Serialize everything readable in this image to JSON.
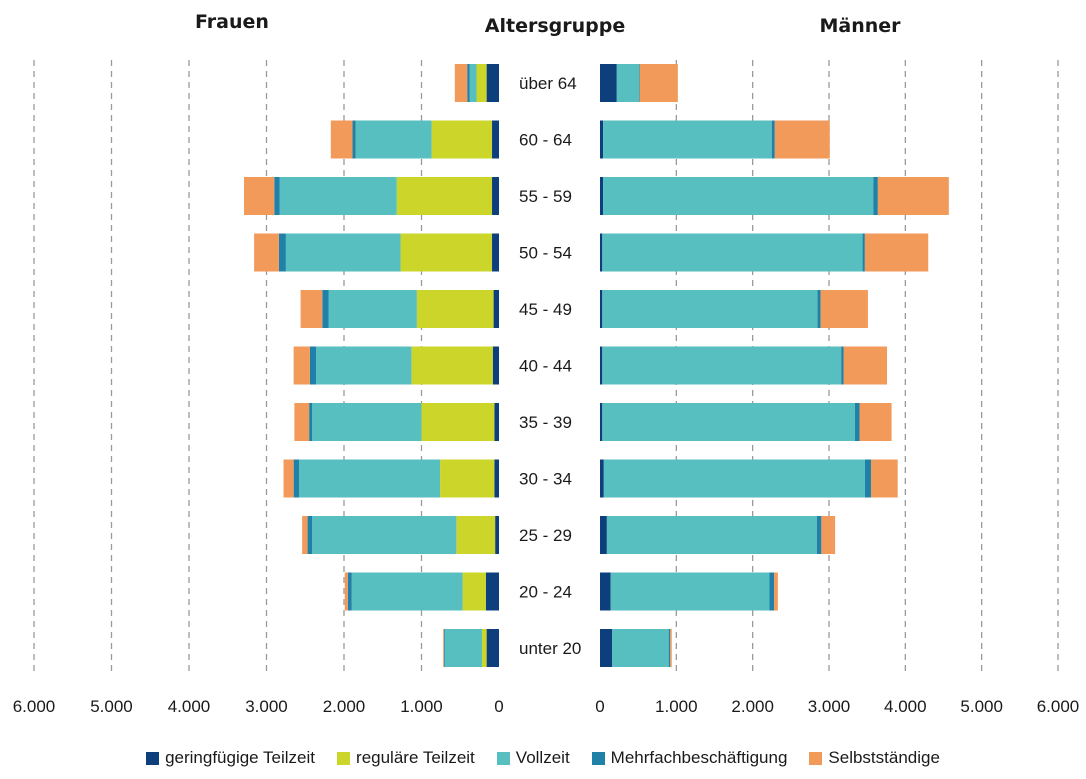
{
  "chart_data": {
    "type": "bar",
    "orientation": "horizontal-pyramid",
    "headers": {
      "left": "Frauen",
      "center": "Altersgruppe",
      "right": "Männer"
    },
    "categories": [
      "über 64",
      "60 - 64",
      "55 - 59",
      "50 - 54",
      "45 - 49",
      "40 - 44",
      "35 - 39",
      "30 - 34",
      "25 - 29",
      "20 - 24",
      "unter 20"
    ],
    "xlim": [
      0,
      6000
    ],
    "ticks": [
      {
        "value": 6000,
        "label": "6.000"
      },
      {
        "value": 5000,
        "label": "5.000"
      },
      {
        "value": 4000,
        "label": "4.000"
      },
      {
        "value": 3000,
        "label": "3.000"
      },
      {
        "value": 2000,
        "label": "2.000"
      },
      {
        "value": 1000,
        "label": "1.000"
      },
      {
        "value": 0,
        "label": "0"
      }
    ],
    "grid": true,
    "legend_position": "bottom",
    "series": [
      {
        "name": "geringfügige Teilzeit",
        "color": "#0d3f7c",
        "frauen": [
          160,
          90,
          90,
          90,
          70,
          80,
          60,
          60,
          50,
          170,
          160
        ],
        "maenner": [
          220,
          40,
          40,
          30,
          30,
          30,
          30,
          50,
          90,
          140,
          160
        ]
      },
      {
        "name": "reguläre Teilzeit",
        "color": "#ccd52a",
        "frauen": [
          130,
          780,
          1230,
          1180,
          990,
          1050,
          940,
          700,
          500,
          300,
          60
        ]
      },
      {
        "name": "Vollzeit",
        "color": "#57bfbf",
        "frauen": [
          90,
          980,
          1510,
          1480,
          1140,
          1230,
          1410,
          1820,
          1860,
          1430,
          480
        ],
        "maenner": [
          290,
          2210,
          3540,
          3410,
          2820,
          3130,
          3310,
          3420,
          2750,
          2080,
          740
        ]
      },
      {
        "name": "Mehrfachbeschäftigung",
        "color": "#1f80a8",
        "frauen": [
          30,
          40,
          70,
          90,
          80,
          80,
          40,
          70,
          60,
          50,
          10
        ],
        "maenner": [
          10,
          40,
          60,
          30,
          40,
          30,
          60,
          80,
          60,
          60,
          20
        ]
      },
      {
        "name": "Selbstständige",
        "color": "#f19a5a",
        "frauen": [
          160,
          280,
          390,
          320,
          280,
          210,
          190,
          130,
          70,
          40,
          10
        ],
        "maenner": [
          500,
          720,
          930,
          830,
          620,
          570,
          420,
          350,
          180,
          50,
          20
        ]
      }
    ]
  }
}
